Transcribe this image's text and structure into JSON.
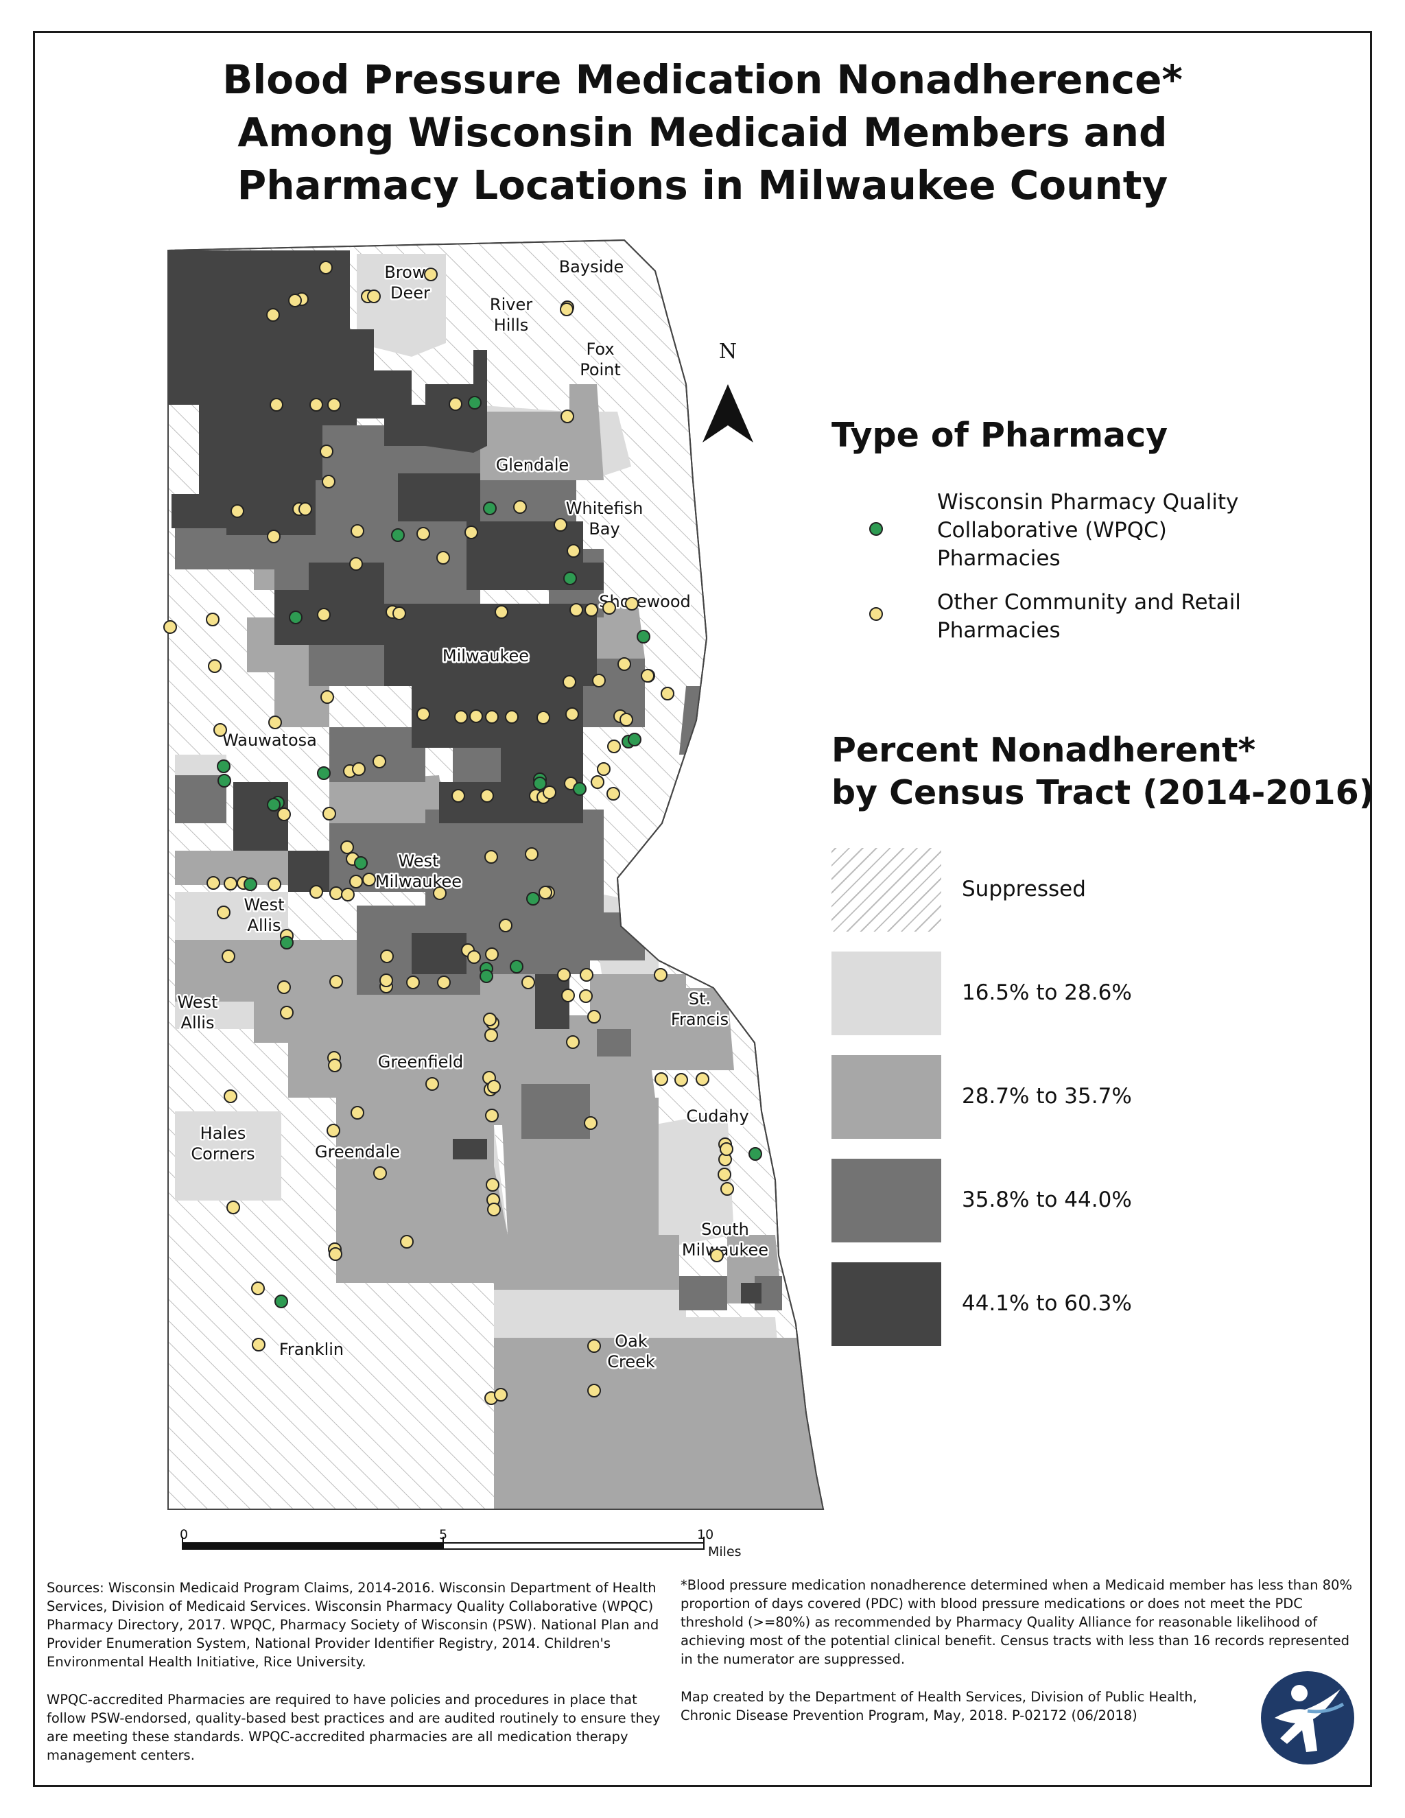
{
  "title": {
    "line1": "Blood Pressure Medication Nonadherence*",
    "line2": "Among Wisconsin Medicaid Members and",
    "line3": "Pharmacy Locations in Milwaukee County"
  },
  "north_label": "N",
  "places": [
    {
      "id": "brown-deer",
      "text": "Brown\nDeer"
    },
    {
      "id": "bayside",
      "text": "Bayside"
    },
    {
      "id": "river-hills",
      "text": "River\nHills"
    },
    {
      "id": "fox-point",
      "text": "Fox\nPoint"
    },
    {
      "id": "glendale",
      "text": "Glendale"
    },
    {
      "id": "whitefish-bay",
      "text": "Whitefish\nBay"
    },
    {
      "id": "shorewood",
      "text": "Shorewood"
    },
    {
      "id": "milwaukee",
      "text": "Milwaukee"
    },
    {
      "id": "wauwatosa",
      "text": "Wauwatosa"
    },
    {
      "id": "west-milwaukee",
      "text": "West\nMilwaukee"
    },
    {
      "id": "west-allis-1",
      "text": "West\nAllis"
    },
    {
      "id": "west-allis-2",
      "text": "West\nAllis"
    },
    {
      "id": "st-francis",
      "text": "St.\nFrancis"
    },
    {
      "id": "greenfield",
      "text": "Greenfield"
    },
    {
      "id": "cudahy",
      "text": "Cudahy"
    },
    {
      "id": "hales-corners",
      "text": "Hales\nCorners"
    },
    {
      "id": "greendale",
      "text": "Greendale"
    },
    {
      "id": "south-milwaukee",
      "text": "South\nMilwaukee"
    },
    {
      "id": "franklin",
      "text": "Franklin"
    },
    {
      "id": "oak-creek",
      "text": "Oak\nCreek"
    }
  ],
  "legend": {
    "pharmacy_title": "Type of Pharmacy",
    "wpqc_label_1": "Wisconsin Pharmacy Quality",
    "wpqc_label_2": "Collaborative (WPQC)",
    "wpqc_label_3": "Pharmacies",
    "other_label_1": "Other Community and Retail",
    "other_label_2": "Pharmacies",
    "wpqc_color": "#2e9b52",
    "other_color": "#f6e28c",
    "percent_title_1": "Percent Nonadherent*",
    "percent_title_2": "by Census Tract (2014-2016)",
    "classes": [
      {
        "label": "Suppressed",
        "color": "#ffffff",
        "hatched": true
      },
      {
        "label": "16.5% to 28.6%",
        "color": "#dcdcdc"
      },
      {
        "label": "28.7% to 35.7%",
        "color": "#a7a7a7"
      },
      {
        "label": "35.8% to 44.0%",
        "color": "#737373"
      },
      {
        "label": "44.1% to 60.3%",
        "color": "#444444"
      }
    ]
  },
  "scale_bar": {
    "tick0": "0",
    "tick5": "5",
    "tick10": "10",
    "unit": "Miles"
  },
  "notes": {
    "sources": "Sources: Wisconsin Medicaid Program Claims, 2014-2016. Wisconsin Department of Health Services, Division of Medicaid Services. Wisconsin Pharmacy Quality Collaborative (WPQC) Pharmacy Directory, 2017. WPQC, Pharmacy Society of Wisconsin (PSW). National Plan and Provider Enumeration System, National Provider Identifier Registry, 2014. Children's Environmental Health Initiative, Rice University.",
    "wpqc": "WPQC-accredited Pharmacies are required to have policies and procedures in place that follow PSW-endorsed, quality-based best practices and are audited routinely to ensure they are meeting these standards. WPQC-accredited  pharmacies are all medication therapy management centers.",
    "definition": "*Blood pressure medication nonadherence determined when a Medicaid member has less than 80% proportion of days covered (PDC) with blood pressure medications or does not meet the PDC threshold (>=80%) as recommended by Pharmacy Quality Alliance for reasonable likelihood of achieving most of the potential clinical benefit. Census tracts with less than 16 records represented in the numerator are suppressed.",
    "credit": "Map created by the Department of Health Services, Division of Public Health, Chronic Disease Prevention Program, May, 2018. P-02172 (06/2018)"
  }
}
